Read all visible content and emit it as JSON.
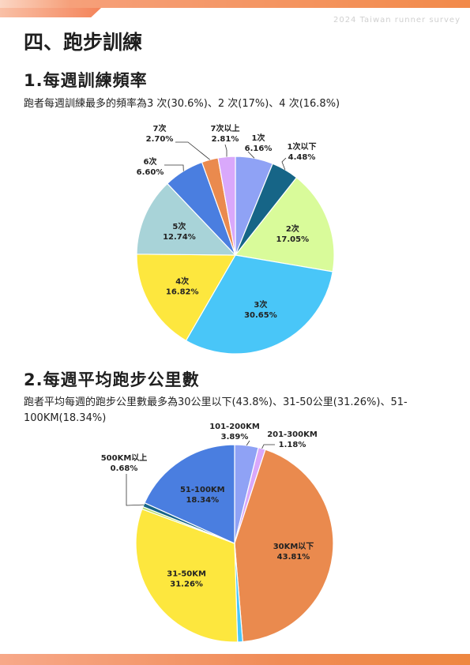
{
  "header": {
    "survey_tag": "2024 Taiwan runner survey",
    "section_title": "四、跑步訓練"
  },
  "section1": {
    "title": "1.每週訓練頻率",
    "summary": "跑者每週訓練最多的頻率為3 次(30.6%)、2 次(17%)、4 次(16.8%)"
  },
  "section2": {
    "title": "2.每週平均跑步公里數",
    "summary": "跑者平均每週的跑步公里數最多為30公里以下(43.8%)、31-50公里(31.26%)、51-100KM(18.34%)"
  },
  "chart_data": [
    {
      "type": "pie",
      "title": "",
      "slices": [
        {
          "label": "1次",
          "value": 6.16,
          "pct": "6.16%",
          "color": "#8fa2f5"
        },
        {
          "label": "1次以下",
          "value": 4.48,
          "pct": "4.48%",
          "color": "#166587"
        },
        {
          "label": "2次",
          "value": 17.05,
          "pct": "17.05%",
          "color": "#d9fb9a"
        },
        {
          "label": "3次",
          "value": 30.65,
          "pct": "30.65%",
          "color": "#49c6f8"
        },
        {
          "label": "4次",
          "value": 16.82,
          "pct": "16.82%",
          "color": "#fde73e"
        },
        {
          "label": "5次",
          "value": 12.74,
          "pct": "12.74%",
          "color": "#a8d3d8"
        },
        {
          "label": "6次",
          "value": 6.6,
          "pct": "6.60%",
          "color": "#4a7ee0"
        },
        {
          "label": "7次",
          "value": 2.7,
          "pct": "2.70%",
          "color": "#ea8a4e"
        },
        {
          "label": "7次以上",
          "value": 2.81,
          "pct": "2.81%",
          "color": "#d9a8fb"
        }
      ]
    },
    {
      "type": "pie",
      "title": "",
      "slices": [
        {
          "label": "101-200KM",
          "value": 3.89,
          "pct": "3.89%",
          "color": "#8fa2f5"
        },
        {
          "label": "201-300KM",
          "value": 1.18,
          "pct": "1.18%",
          "color": "#d9a8fb"
        },
        {
          "label": "30KM以下",
          "value": 43.81,
          "pct": "43.81%",
          "color": "#ea8a4e"
        },
        {
          "label": "",
          "value": 0.84,
          "pct": "",
          "color": "#49c6f8"
        },
        {
          "label": "31-50KM",
          "value": 31.26,
          "pct": "31.26%",
          "color": "#fde73e"
        },
        {
          "label": "",
          "value": 0.4,
          "pct": "",
          "color": "#b7dd6f"
        },
        {
          "label": "500KM以上",
          "value": 0.68,
          "pct": "0.68%",
          "color": "#166587"
        },
        {
          "label": "51-100KM",
          "value": 18.34,
          "pct": "18.34%",
          "color": "#4a7ee0"
        }
      ]
    }
  ]
}
